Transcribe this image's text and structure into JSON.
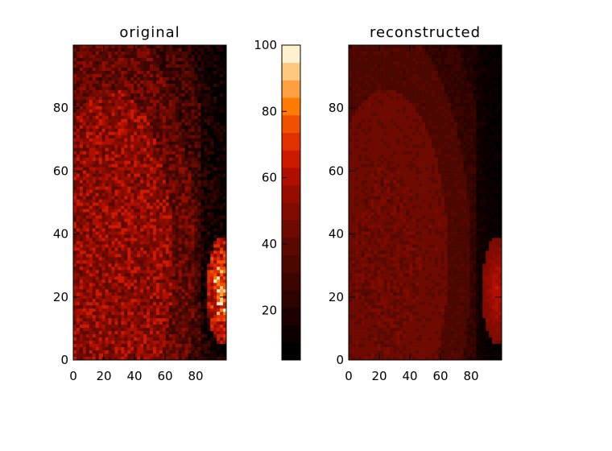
{
  "chart_data": [
    {
      "type": "heatmap",
      "title": "original",
      "x_ticks": [
        0,
        20,
        40,
        60,
        80
      ],
      "y_ticks": [
        0,
        20,
        40,
        60,
        80
      ],
      "xlim": [
        0,
        100
      ],
      "ylim": [
        0,
        100
      ],
      "grid": false
    },
    {
      "type": "heatmap",
      "title": "reconstructed",
      "x_ticks": [
        0,
        20,
        40,
        60,
        80
      ],
      "y_ticks": [
        0,
        20,
        40,
        60,
        80
      ],
      "xlim": [
        0,
        100
      ],
      "ylim": [
        0,
        100
      ],
      "grid": false
    }
  ],
  "colorbar": {
    "ticks": [
      20,
      40,
      60,
      80,
      100
    ],
    "range": [
      5,
      100
    ],
    "levels": 18,
    "colors": [
      "#000000",
      "#0f0000",
      "#1e0000",
      "#2d0300",
      "#3c0500",
      "#4b0700",
      "#5a0900",
      "#6e0a00",
      "#820b00",
      "#960c00",
      "#b00f00",
      "#cc1a00",
      "#e03000",
      "#f05000",
      "#ff7a00",
      "#ffa040",
      "#ffc880",
      "#fff0d0"
    ]
  }
}
